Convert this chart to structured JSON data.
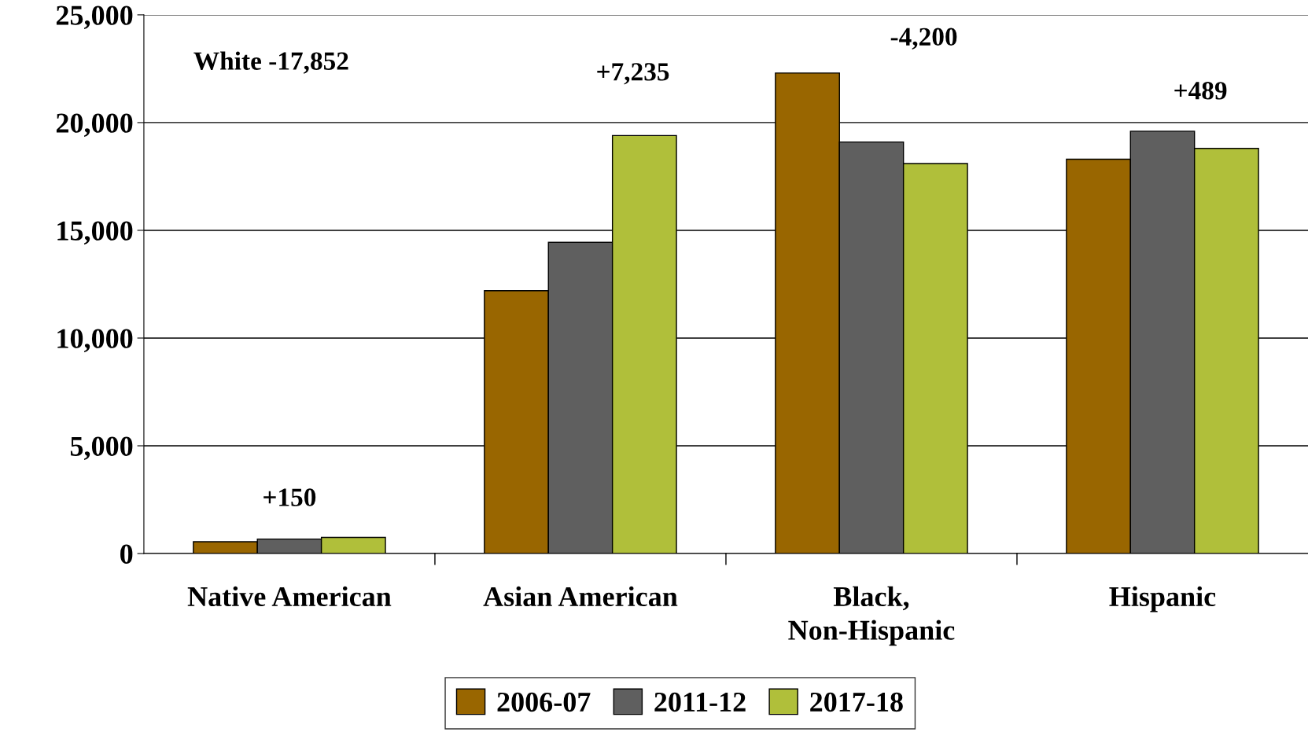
{
  "chart_data": {
    "type": "bar",
    "categories": [
      "Native American",
      "Asian American",
      "Black, Non-Hispanic",
      "Hispanic"
    ],
    "series": [
      {
        "name": "2006-07",
        "color": "#996600",
        "values": [
          550,
          12200,
          22300,
          18300
        ]
      },
      {
        "name": "2011-12",
        "color": "#5f5f5f",
        "values": [
          670,
          14440,
          19100,
          19600
        ]
      },
      {
        "name": "2017-18",
        "color": "#b0bf3a",
        "values": [
          750,
          19400,
          18100,
          18800
        ]
      }
    ],
    "ylim": [
      0,
      25000
    ],
    "yticks": [
      {
        "value": 0,
        "label": "0"
      },
      {
        "value": 5000,
        "label": "5,000"
      },
      {
        "value": 10000,
        "label": "10,000"
      },
      {
        "value": 15000,
        "label": "15,000"
      },
      {
        "value": 20000,
        "label": "20,000"
      },
      {
        "value": 25000,
        "label": "25,000"
      }
    ],
    "grid": "y",
    "legend": "bottom",
    "annotations": [
      "White -17,852",
      "+150",
      "+7,235",
      "-4,200",
      "+489"
    ]
  }
}
